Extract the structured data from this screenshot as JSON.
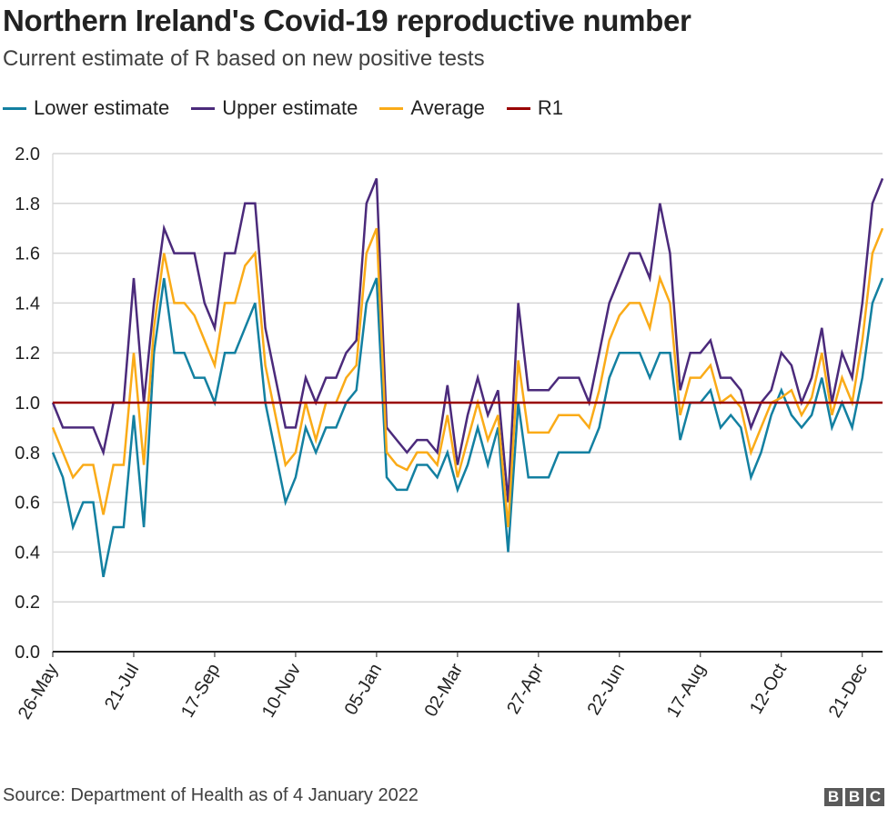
{
  "chart_data": {
    "type": "line",
    "title": "Northern Ireland's Covid-19 reproductive number",
    "subtitle": "Current estimate of R based on new positive tests",
    "x_tick_labels": [
      "26-May",
      "21-Jul",
      "17-Sep",
      "10-Nov",
      "05-Jan",
      "02-Mar",
      "27-Apr",
      "22-Jun",
      "17-Aug",
      "12-Oct",
      "21-Dec"
    ],
    "y_ticks": [
      "0.0",
      "0.2",
      "0.4",
      "0.6",
      "0.8",
      "1.0",
      "1.2",
      "1.4",
      "1.6",
      "1.8",
      "2.0"
    ],
    "ylim": [
      0,
      2.0
    ],
    "grid": "horizontal",
    "legend_position": "top-left",
    "series": [
      {
        "name": "Lower estimate",
        "color": "#1380A1",
        "values": [
          0.8,
          0.7,
          0.5,
          0.6,
          0.6,
          0.3,
          0.5,
          0.5,
          0.95,
          0.5,
          1.2,
          1.5,
          1.2,
          1.2,
          1.1,
          1.1,
          1.0,
          1.2,
          1.2,
          1.3,
          1.4,
          1.0,
          0.8,
          0.6,
          0.7,
          0.9,
          0.8,
          0.9,
          0.9,
          1.0,
          1.05,
          1.4,
          1.5,
          0.7,
          0.65,
          0.65,
          0.75,
          0.75,
          0.7,
          0.8,
          0.65,
          0.75,
          0.9,
          0.75,
          0.9,
          0.4,
          1.0,
          0.7,
          0.7,
          0.7,
          0.8,
          0.8,
          0.8,
          0.8,
          0.9,
          1.1,
          1.2,
          1.2,
          1.2,
          1.1,
          1.2,
          1.2,
          0.85,
          1.0,
          1.0,
          1.05,
          0.9,
          0.95,
          0.9,
          0.7,
          0.8,
          0.95,
          1.05,
          0.95,
          0.9,
          0.95,
          1.1,
          0.9,
          1.0,
          0.9,
          1.1,
          1.4,
          1.5
        ]
      },
      {
        "name": "Upper estimate",
        "color": "#4B2A7B",
        "values": [
          1.0,
          0.9,
          0.9,
          0.9,
          0.9,
          0.8,
          1.0,
          1.0,
          1.5,
          1.0,
          1.4,
          1.7,
          1.6,
          1.6,
          1.6,
          1.4,
          1.3,
          1.6,
          1.6,
          1.8,
          1.8,
          1.3,
          1.1,
          0.9,
          0.9,
          1.1,
          1.0,
          1.1,
          1.1,
          1.2,
          1.25,
          1.8,
          1.9,
          0.9,
          0.85,
          0.8,
          0.85,
          0.85,
          0.8,
          1.07,
          0.75,
          0.95,
          1.1,
          0.95,
          1.05,
          0.6,
          1.4,
          1.05,
          1.05,
          1.05,
          1.1,
          1.1,
          1.1,
          1.0,
          1.2,
          1.4,
          1.5,
          1.6,
          1.6,
          1.5,
          1.8,
          1.6,
          1.05,
          1.2,
          1.2,
          1.25,
          1.1,
          1.1,
          1.05,
          0.9,
          1.0,
          1.05,
          1.2,
          1.15,
          1.0,
          1.1,
          1.3,
          1.0,
          1.2,
          1.1,
          1.4,
          1.8,
          1.9
        ]
      },
      {
        "name": "Average",
        "color": "#FAAB18",
        "values": [
          0.9,
          0.8,
          0.7,
          0.75,
          0.75,
          0.55,
          0.75,
          0.75,
          1.2,
          0.75,
          1.3,
          1.6,
          1.4,
          1.4,
          1.35,
          1.25,
          1.15,
          1.4,
          1.4,
          1.55,
          1.6,
          1.15,
          0.95,
          0.75,
          0.8,
          1.0,
          0.85,
          1.0,
          1.0,
          1.1,
          1.15,
          1.6,
          1.7,
          0.8,
          0.75,
          0.73,
          0.8,
          0.8,
          0.75,
          0.95,
          0.7,
          0.85,
          1.0,
          0.85,
          0.95,
          0.5,
          1.17,
          0.88,
          0.88,
          0.88,
          0.95,
          0.95,
          0.95,
          0.9,
          1.05,
          1.25,
          1.35,
          1.4,
          1.4,
          1.3,
          1.5,
          1.4,
          0.95,
          1.1,
          1.1,
          1.15,
          1.0,
          1.03,
          0.98,
          0.8,
          0.9,
          1.0,
          1.02,
          1.05,
          0.95,
          1.02,
          1.2,
          0.95,
          1.1,
          1.0,
          1.25,
          1.6,
          1.7
        ]
      },
      {
        "name": "R1",
        "color": "#990000",
        "value": 1.0
      }
    ],
    "source": "Source: Department of Health as of 4 January 2022",
    "logo": "BBC"
  }
}
